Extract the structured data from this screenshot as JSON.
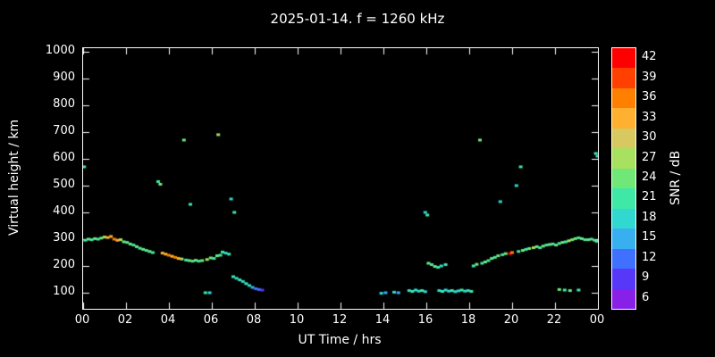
{
  "chart_data": {
    "type": "scatter",
    "title": "2025-01-14. f = 1260 kHz",
    "xlabel": "UT Time / hrs",
    "ylabel": "Virtual height / km",
    "colorbar_label": "SNR / dB",
    "background": "#000000",
    "frame_color": "#ffffff",
    "xlim": [
      0,
      24
    ],
    "ylim": [
      40,
      1013
    ],
    "grid": false,
    "x_tick_values": [
      0,
      2,
      4,
      6,
      8,
      10,
      12,
      14,
      16,
      18,
      20,
      22,
      24
    ],
    "x_tick_labels": [
      "00",
      "02",
      "04",
      "06",
      "08",
      "10",
      "12",
      "14",
      "16",
      "18",
      "20",
      "22",
      "00"
    ],
    "y_tick_values": [
      100,
      200,
      300,
      400,
      500,
      600,
      700,
      800,
      900,
      1000
    ],
    "y_tick_labels": [
      "100",
      "200",
      "300",
      "400",
      "500",
      "600",
      "700",
      "800",
      "900",
      "1000"
    ],
    "colorbar_values": [
      42,
      39,
      36,
      33,
      30,
      27,
      24,
      21,
      18,
      15,
      12,
      9,
      6
    ],
    "colorbar_colors": [
      "#ff0000",
      "#ff4000",
      "#ff8000",
      "#ffb030",
      "#d8c860",
      "#a8e060",
      "#70e878",
      "#40e8a8",
      "#30d8d0",
      "#38b0f0",
      "#4070ff",
      "#5838f8",
      "#8820e8"
    ],
    "snr_min": 6,
    "snr_max": 42,
    "snr_step": 3,
    "points_format": [
      "ut_hour",
      "virtual_height_km",
      "snr_db"
    ],
    "points": [
      [
        0.05,
        570,
        21
      ],
      [
        0.1,
        296,
        21
      ],
      [
        0.25,
        300,
        24
      ],
      [
        0.4,
        298,
        21
      ],
      [
        0.55,
        302,
        24
      ],
      [
        0.7,
        300,
        21
      ],
      [
        0.85,
        304,
        24
      ],
      [
        1.0,
        308,
        27
      ],
      [
        1.15,
        306,
        33
      ],
      [
        1.3,
        310,
        33
      ],
      [
        1.45,
        300,
        36
      ],
      [
        1.6,
        296,
        33
      ],
      [
        1.75,
        298,
        27
      ],
      [
        1.9,
        290,
        24
      ],
      [
        2.05,
        288,
        21
      ],
      [
        2.2,
        282,
        24
      ],
      [
        2.35,
        278,
        21
      ],
      [
        2.5,
        272,
        24
      ],
      [
        2.65,
        266,
        21
      ],
      [
        2.8,
        262,
        24
      ],
      [
        2.95,
        258,
        21
      ],
      [
        3.1,
        254,
        24
      ],
      [
        3.25,
        250,
        21
      ],
      [
        3.5,
        515,
        21
      ],
      [
        3.6,
        505,
        24
      ],
      [
        3.7,
        248,
        33
      ],
      [
        3.85,
        244,
        33
      ],
      [
        4.0,
        240,
        36
      ],
      [
        4.15,
        236,
        33
      ],
      [
        4.3,
        232,
        36
      ],
      [
        4.45,
        228,
        33
      ],
      [
        4.6,
        226,
        27
      ],
      [
        4.7,
        670,
        24
      ],
      [
        4.8,
        222,
        21
      ],
      [
        4.95,
        220,
        24
      ],
      [
        5.0,
        430,
        21
      ],
      [
        5.1,
        218,
        21
      ],
      [
        5.25,
        221,
        24
      ],
      [
        5.4,
        218,
        21
      ],
      [
        5.55,
        220,
        24
      ],
      [
        5.7,
        100,
        21
      ],
      [
        5.78,
        224,
        27
      ],
      [
        5.9,
        100,
        18
      ],
      [
        5.95,
        230,
        24
      ],
      [
        6.1,
        228,
        21
      ],
      [
        6.25,
        238,
        24
      ],
      [
        6.3,
        690,
        27
      ],
      [
        6.4,
        240,
        21
      ],
      [
        6.5,
        252,
        21
      ],
      [
        6.65,
        248,
        18
      ],
      [
        6.8,
        244,
        21
      ],
      [
        6.9,
        450,
        18
      ],
      [
        7.05,
        400,
        21
      ],
      [
        7.0,
        160,
        21
      ],
      [
        7.15,
        154,
        18
      ],
      [
        7.3,
        148,
        21
      ],
      [
        7.45,
        142,
        18
      ],
      [
        7.6,
        134,
        21
      ],
      [
        7.75,
        127,
        18
      ],
      [
        7.9,
        120,
        15
      ],
      [
        8.05,
        115,
        12
      ],
      [
        8.2,
        112,
        12
      ],
      [
        8.35,
        110,
        9
      ],
      [
        13.9,
        98,
        18
      ],
      [
        14.1,
        100,
        15
      ],
      [
        14.5,
        102,
        18
      ],
      [
        14.7,
        100,
        15
      ],
      [
        15.2,
        108,
        18
      ],
      [
        15.35,
        105,
        21
      ],
      [
        15.5,
        110,
        18
      ],
      [
        15.65,
        106,
        18
      ],
      [
        15.8,
        108,
        21
      ],
      [
        15.95,
        104,
        18
      ],
      [
        15.95,
        400,
        18
      ],
      [
        16.05,
        390,
        21
      ],
      [
        16.1,
        210,
        24
      ],
      [
        16.25,
        205,
        21
      ],
      [
        16.4,
        198,
        24
      ],
      [
        16.55,
        195,
        21
      ],
      [
        16.7,
        200,
        18
      ],
      [
        16.9,
        205,
        21
      ],
      [
        16.6,
        108,
        18
      ],
      [
        16.75,
        105,
        21
      ],
      [
        16.9,
        110,
        18
      ],
      [
        17.05,
        106,
        18
      ],
      [
        17.2,
        108,
        21
      ],
      [
        17.35,
        104,
        18
      ],
      [
        17.5,
        107,
        18
      ],
      [
        17.65,
        110,
        21
      ],
      [
        17.8,
        106,
        18
      ],
      [
        17.95,
        108,
        18
      ],
      [
        18.1,
        105,
        21
      ],
      [
        18.2,
        200,
        21
      ],
      [
        18.35,
        206,
        24
      ],
      [
        18.5,
        670,
        24
      ],
      [
        18.6,
        210,
        21
      ],
      [
        18.75,
        215,
        24
      ],
      [
        18.9,
        220,
        21
      ],
      [
        19.05,
        228,
        24
      ],
      [
        19.2,
        232,
        21
      ],
      [
        19.35,
        238,
        24
      ],
      [
        19.45,
        440,
        18
      ],
      [
        19.55,
        242,
        21
      ],
      [
        19.7,
        246,
        24
      ],
      [
        19.9,
        246,
        42
      ],
      [
        20.0,
        250,
        36
      ],
      [
        20.2,
        500,
        18
      ],
      [
        20.4,
        570,
        21
      ],
      [
        20.3,
        254,
        21
      ],
      [
        20.5,
        258,
        24
      ],
      [
        20.65,
        262,
        21
      ],
      [
        20.8,
        265,
        24
      ],
      [
        21.0,
        268,
        27
      ],
      [
        21.15,
        272,
        24
      ],
      [
        21.3,
        268,
        21
      ],
      [
        21.45,
        274,
        24
      ],
      [
        21.6,
        278,
        21
      ],
      [
        21.75,
        280,
        24
      ],
      [
        21.9,
        282,
        21
      ],
      [
        22.05,
        278,
        24
      ],
      [
        22.2,
        284,
        21
      ],
      [
        22.35,
        288,
        24
      ],
      [
        22.5,
        290,
        21
      ],
      [
        22.65,
        294,
        27
      ],
      [
        22.8,
        298,
        24
      ],
      [
        22.95,
        302,
        24
      ],
      [
        23.1,
        305,
        21
      ],
      [
        23.25,
        302,
        24
      ],
      [
        23.4,
        298,
        21
      ],
      [
        23.55,
        298,
        24
      ],
      [
        23.7,
        300,
        21
      ],
      [
        23.85,
        296,
        24
      ],
      [
        23.95,
        292,
        21
      ],
      [
        22.2,
        112,
        24
      ],
      [
        22.45,
        110,
        21
      ],
      [
        22.7,
        108,
        24
      ],
      [
        23.1,
        110,
        21
      ],
      [
        23.9,
        620,
        21
      ],
      [
        23.98,
        610,
        18
      ]
    ]
  }
}
